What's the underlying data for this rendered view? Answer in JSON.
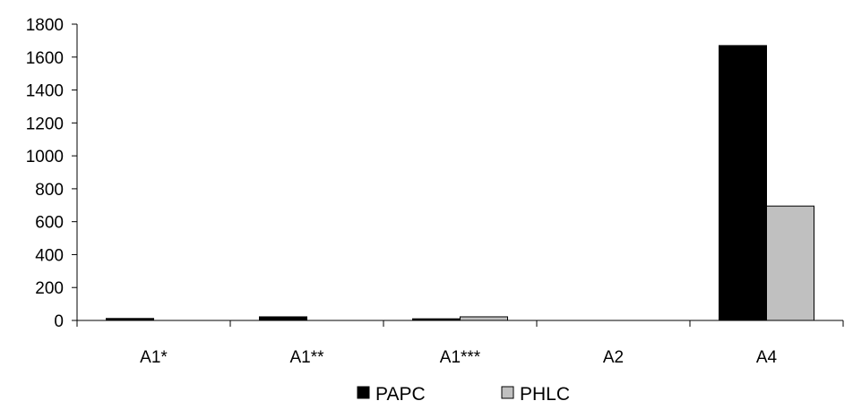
{
  "chart_data": {
    "type": "bar",
    "categories": [
      "A1*",
      "A1**",
      "A1***",
      "A2",
      "A4"
    ],
    "series": [
      {
        "name": "PAPC",
        "values": [
          12,
          22,
          10,
          0,
          1670
        ],
        "color": "#000000"
      },
      {
        "name": "PHLC",
        "values": [
          0,
          0,
          22,
          0,
          695
        ],
        "color": "#c0c0c0"
      }
    ],
    "title": "",
    "xlabel": "",
    "ylabel": "",
    "ylim": [
      0,
      1800
    ],
    "yticks": [
      0,
      200,
      400,
      600,
      800,
      1000,
      1200,
      1400,
      1600,
      1800
    ],
    "grid": false,
    "legend_position": "bottom"
  }
}
